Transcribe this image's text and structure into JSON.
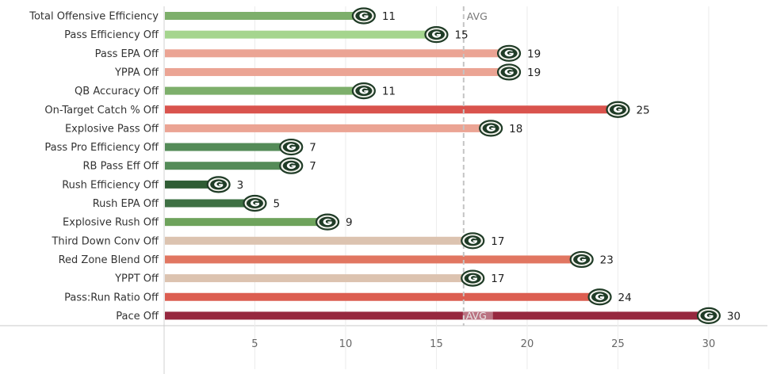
{
  "chart_data": {
    "type": "bar",
    "orientation": "horizontal",
    "title": "",
    "xlabel": "",
    "ylabel": "",
    "xlim": [
      -0.5,
      31.5
    ],
    "xticks": [
      5,
      10,
      15,
      20,
      25,
      30
    ],
    "avg_value": 16.5,
    "avg_label": "AVG",
    "grid": true,
    "marker_icon": "packers-g-logo-icon",
    "categories": [
      "Total Offensive Efficiency",
      "Pass Efficiency Off",
      "Pass EPA Off",
      "YPPA Off",
      "QB Accuracy Off",
      "On-Target Catch % Off",
      "Explosive Pass Off",
      "Pass Pro Efficiency Off",
      "RB Pass Eff Off",
      "Rush Efficiency Off",
      "Rush EPA Off",
      "Explosive Rush Off",
      "Third Down Conv Off",
      "Red Zone Blend Off",
      "YPPT Off",
      "Pass:Run Ratio Off",
      "Pace Off"
    ],
    "values": [
      11,
      15,
      19,
      19,
      11,
      25,
      18,
      7,
      7,
      3,
      5,
      9,
      17,
      23,
      17,
      24,
      30
    ],
    "colors": [
      "#7daf6b",
      "#a5d58e",
      "#eba494",
      "#eba494",
      "#7daf6b",
      "#d9534d",
      "#eba494",
      "#548b58",
      "#548b58",
      "#2f5d34",
      "#3e7043",
      "#6ea35c",
      "#dcc3b0",
      "#e17661",
      "#dcc3b0",
      "#dc5e51",
      "#96283f"
    ]
  }
}
